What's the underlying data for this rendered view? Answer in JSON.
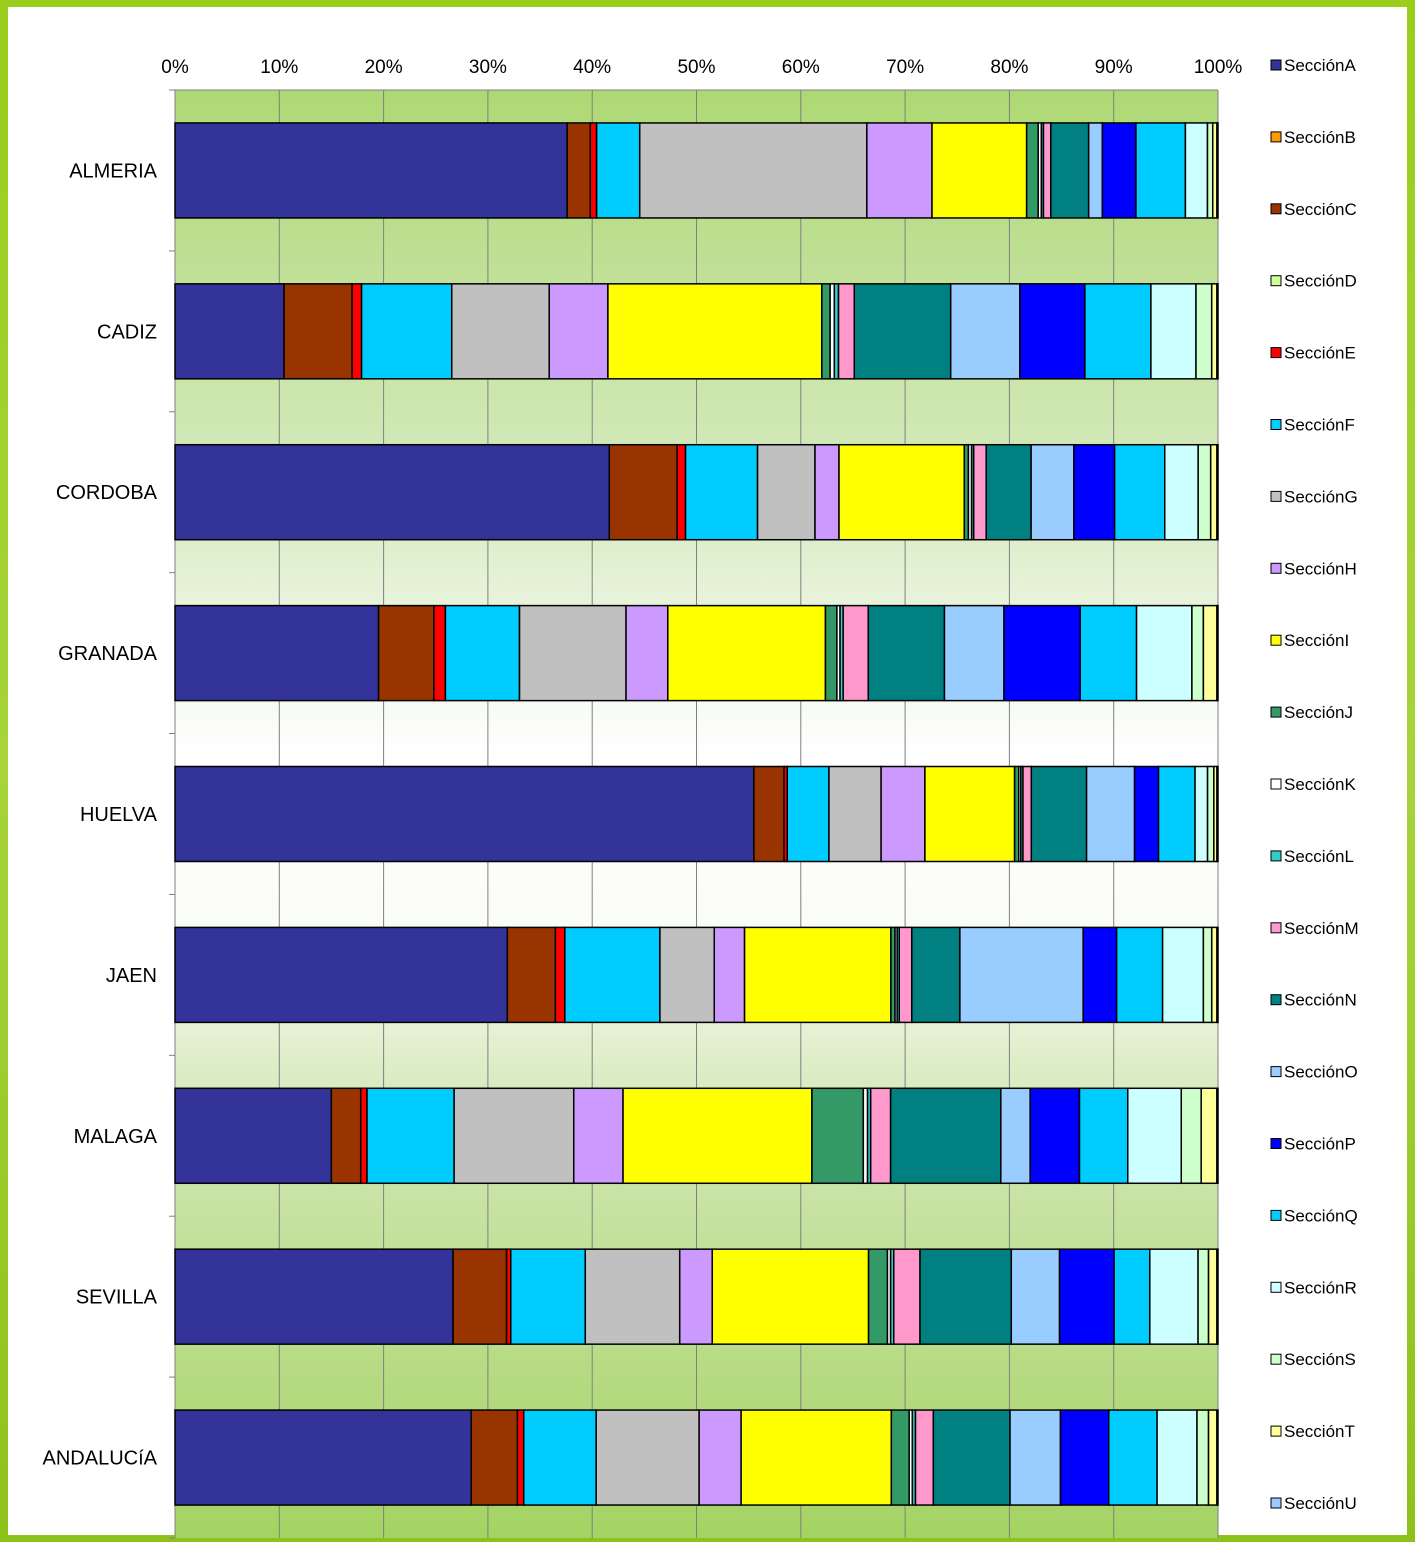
{
  "chart_data": {
    "type": "bar",
    "orientation": "horizontal",
    "stacked": "percent",
    "xlim": [
      0,
      100
    ],
    "x_ticks": [
      "0%",
      "10%",
      "20%",
      "30%",
      "40%",
      "50%",
      "60%",
      "70%",
      "80%",
      "90%",
      "100%"
    ],
    "grid": true,
    "legend_position": "right",
    "categories": [
      "ALMERIA",
      "CADIZ",
      "CORDOBA",
      "GRANADA",
      "HUELVA",
      "JAEN",
      "MALAGA",
      "SEVILLA",
      "ANDALUCíA"
    ],
    "series": [
      {
        "name": "SecciónA",
        "color": "#333399",
        "values": [
          37.3,
          10.4,
          41.6,
          19.5,
          55.5,
          31.8,
          14.9,
          26.5,
          28.2
        ]
      },
      {
        "name": "SecciónB",
        "color": "#FF9900",
        "values": [
          0,
          0,
          0,
          0,
          0,
          0,
          0,
          0,
          0
        ]
      },
      {
        "name": "SecciónC",
        "color": "#993300",
        "values": [
          2.2,
          6.5,
          6.5,
          5.3,
          2.9,
          4.6,
          2.8,
          5.1,
          4.4
        ]
      },
      {
        "name": "SecciónD",
        "color": "#CCFF99",
        "values": [
          0,
          0,
          0,
          0,
          0,
          0,
          0,
          0,
          0
        ]
      },
      {
        "name": "SecciónE",
        "color": "#FF0000",
        "values": [
          0.6,
          0.9,
          0.8,
          1.1,
          0.3,
          0.9,
          0.6,
          0.4,
          0.6
        ]
      },
      {
        "name": "SecciónF",
        "color": "#00CCFF",
        "values": [
          4.1,
          8.6,
          6.9,
          7.1,
          4.0,
          9.1,
          8.3,
          7.1,
          6.9
        ]
      },
      {
        "name": "SecciónG",
        "color": "#C0C0C0",
        "values": [
          21.6,
          9.3,
          5.5,
          10.2,
          5.0,
          5.2,
          11.4,
          9.0,
          9.8
        ]
      },
      {
        "name": "SecciónH",
        "color": "#CC99FF",
        "values": [
          6.2,
          5.6,
          2.3,
          4.0,
          4.2,
          2.9,
          4.7,
          3.1,
          4.0
        ]
      },
      {
        "name": "SecciónI",
        "color": "#FFFF00",
        "values": [
          9.0,
          20.4,
          12.0,
          15.1,
          8.6,
          14.0,
          18.0,
          14.9,
          14.3
        ]
      },
      {
        "name": "SecciónJ",
        "color": "#339966",
        "values": [
          1.1,
          0.8,
          0.4,
          1.1,
          0.4,
          0.4,
          4.9,
          1.8,
          1.7
        ]
      },
      {
        "name": "SecciónK",
        "color": "#FFFFFF",
        "values": [
          0.3,
          0.4,
          0.3,
          0.3,
          0.2,
          0.2,
          0.4,
          0.3,
          0.3
        ]
      },
      {
        "name": "SecciónL",
        "color": "#33CCCC",
        "values": [
          0.2,
          0.4,
          0.2,
          0.3,
          0.2,
          0.2,
          0.3,
          0.3,
          0.3
        ]
      },
      {
        "name": "SecciónM",
        "color": "#FF99CC",
        "values": [
          0.7,
          1.5,
          1.2,
          2.4,
          0.8,
          1.2,
          1.9,
          2.5,
          1.7
        ]
      },
      {
        "name": "SecciónN",
        "color": "#008080",
        "values": [
          3.6,
          9.2,
          4.3,
          7.3,
          5.3,
          4.6,
          10.5,
          8.7,
          7.3
        ]
      },
      {
        "name": "SecciónO",
        "color": "#99CCFF",
        "values": [
          1.3,
          6.6,
          4.1,
          5.7,
          4.6,
          11.8,
          2.8,
          4.6,
          4.8
        ]
      },
      {
        "name": "SecciónP",
        "color": "#0000FF",
        "values": [
          3.2,
          6.2,
          3.9,
          7.3,
          2.3,
          3.2,
          4.7,
          5.2,
          4.6
        ]
      },
      {
        "name": "SecciónQ",
        "color": "#00CCFF",
        "values": [
          4.7,
          6.3,
          4.8,
          5.4,
          3.5,
          4.4,
          4.6,
          3.4,
          4.6
        ]
      },
      {
        "name": "SecciónR",
        "color": "#CCFFFF",
        "values": [
          2.1,
          4.3,
          3.2,
          5.3,
          1.2,
          3.9,
          5.1,
          4.6,
          3.8
        ]
      },
      {
        "name": "SecciónS",
        "color": "#CCFFCC",
        "values": [
          0.5,
          1.5,
          1.2,
          1.1,
          0.6,
          0.8,
          1.9,
          1.0,
          1.1
        ]
      },
      {
        "name": "SecciónT",
        "color": "#FFFF99",
        "values": [
          0.4,
          0.5,
          0.6,
          1.3,
          0.3,
          0.5,
          1.5,
          0.8,
          0.8
        ]
      },
      {
        "name": "SecciónU",
        "color": "#99CCFF",
        "values": [
          0.1,
          0.1,
          0.1,
          0.1,
          0.1,
          0.1,
          0.1,
          0.1,
          0.1
        ]
      }
    ]
  },
  "colors": {
    "frame_green": "#9ACD1C",
    "band_green": "#AED874",
    "axis_gray": "#808080",
    "bar_border": "#000000"
  }
}
